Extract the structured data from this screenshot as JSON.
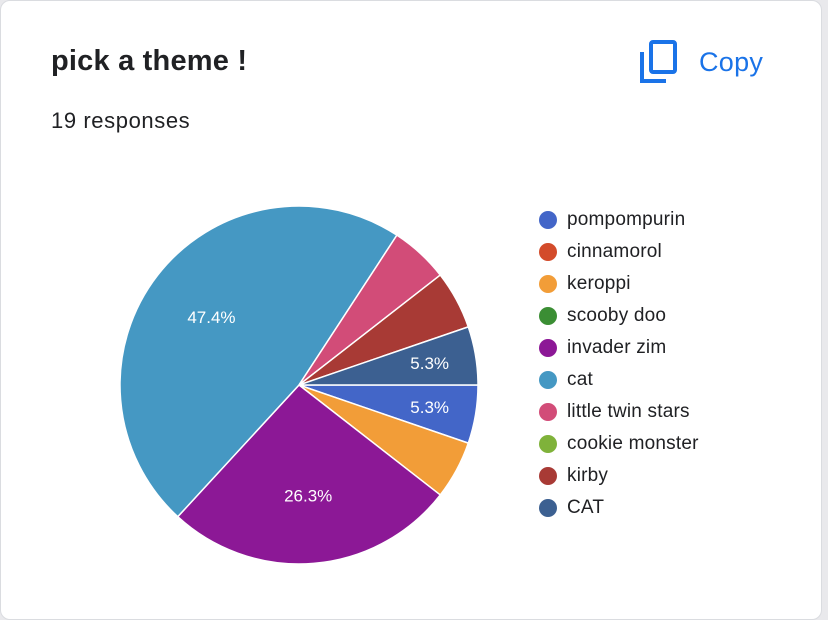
{
  "header": {
    "title": "pick a theme !",
    "responses": "19 responses",
    "copy_label": "Copy",
    "copy_icon": "copy-icon",
    "accent": "#1a73e8"
  },
  "chart_data": {
    "type": "pie",
    "total_responses": 19,
    "legend_position": "right",
    "slices": [
      {
        "label": "pompompurin",
        "value": 1,
        "percent_label": "5.3%",
        "color": "#4366c8"
      },
      {
        "label": "cinnamorol",
        "value": 0,
        "percent_label": "",
        "color": "#d34b2a"
      },
      {
        "label": "keroppi",
        "value": 1,
        "percent_label": "",
        "color": "#f29d38"
      },
      {
        "label": "scooby doo",
        "value": 0,
        "percent_label": "",
        "color": "#3b8e34"
      },
      {
        "label": "invader zim",
        "value": 5,
        "percent_label": "26.3%",
        "color": "#8c1896"
      },
      {
        "label": "cat",
        "value": 9,
        "percent_label": "47.4%",
        "color": "#4598c3"
      },
      {
        "label": "little twin stars",
        "value": 1,
        "percent_label": "",
        "color": "#d24c78"
      },
      {
        "label": "cookie monster",
        "value": 0,
        "percent_label": "",
        "color": "#7fb23a"
      },
      {
        "label": "kirby",
        "value": 1,
        "percent_label": "",
        "color": "#a83a35"
      },
      {
        "label": "CAT",
        "value": 1,
        "percent_label": "5.3%",
        "color": "#3c6091"
      }
    ]
  }
}
